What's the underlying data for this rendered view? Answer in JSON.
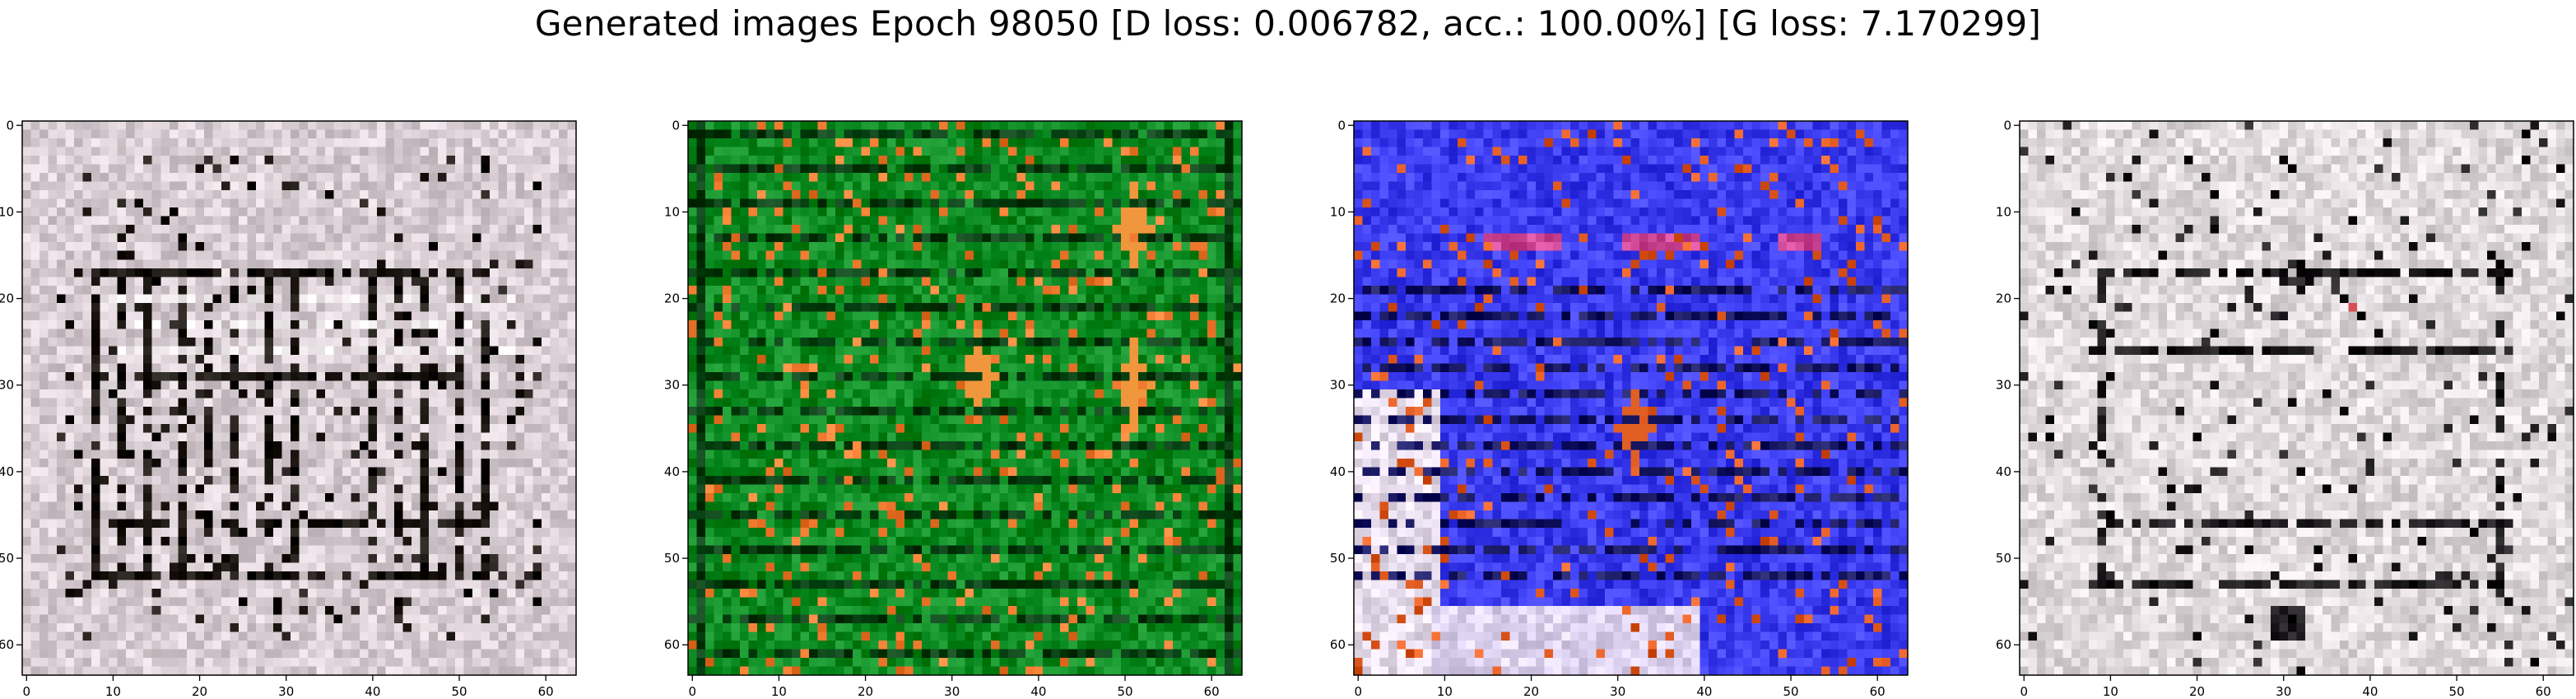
{
  "figure": {
    "suptitle": "Generated images Epoch 98050 [D loss: 0.006782, acc.: 100.00%] [G loss: 7.170299]"
  },
  "panels": [
    {
      "name": "generated-image-1",
      "description_palette": {
        "base": "#d8cdd2",
        "grid": "#1a1410",
        "accent": "#f4f0f2"
      },
      "xticks": [
        "0",
        "10",
        "20",
        "30",
        "40",
        "50",
        "60"
      ],
      "yticks": [
        "0",
        "10",
        "20",
        "30",
        "40",
        "50",
        "60"
      ]
    },
    {
      "name": "generated-image-2",
      "description_palette": {
        "base": "#0b8a22",
        "grid": "#033d10",
        "accent": "#f07a30"
      },
      "xticks": [
        "0",
        "10",
        "20",
        "30",
        "40",
        "50",
        "60"
      ],
      "yticks": [
        "0",
        "10",
        "20",
        "30",
        "40",
        "50",
        "60"
      ]
    },
    {
      "name": "generated-image-3",
      "description_palette": {
        "base": "#3b3cf0",
        "grid": "#151560",
        "accent": "#e05a20"
      },
      "xticks": [
        "0",
        "10",
        "20",
        "30",
        "40",
        "50",
        "60"
      ],
      "yticks": [
        "0",
        "10",
        "20",
        "30",
        "40",
        "50",
        "60"
      ]
    },
    {
      "name": "generated-image-4",
      "description_palette": {
        "base": "#e0dadc",
        "grid": "#1c1a1c",
        "accent": "#f6f3f4"
      },
      "xticks": [
        "0",
        "10",
        "20",
        "30",
        "40",
        "50",
        "60"
      ],
      "yticks": [
        "0",
        "10",
        "20",
        "30",
        "40",
        "50",
        "60"
      ]
    }
  ]
}
